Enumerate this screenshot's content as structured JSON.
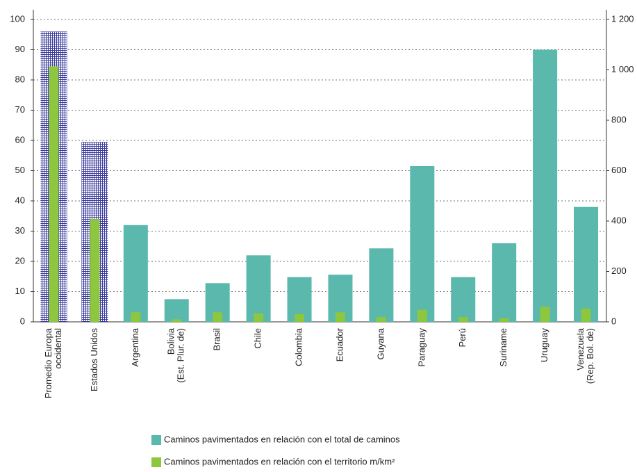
{
  "chart_data": {
    "type": "bar",
    "categories": [
      [
        "Promedio Europa",
        "occidental"
      ],
      [
        "Estados Unidos"
      ],
      [
        "Argentina"
      ],
      [
        "Bolivia",
        "(Est. Plur. de)"
      ],
      [
        "Brasil"
      ],
      [
        "Chile"
      ],
      [
        "Colombia"
      ],
      [
        "Ecuador"
      ],
      [
        "Guyana"
      ],
      [
        "Paraguay"
      ],
      [
        "Perú"
      ],
      [
        "Suriname"
      ],
      [
        "Uruguay"
      ],
      [
        "Venezuela",
        "(Rep. Bol. de)"
      ]
    ],
    "series": [
      {
        "name": "Caminos pavimentados en relación con el total de caminos",
        "color": "#5ab8ac",
        "values": [
          96,
          59.5,
          32,
          7.5,
          12.8,
          22,
          14.8,
          15.6,
          24.3,
          51.5,
          14.8,
          26,
          90,
          38
        ]
      },
      {
        "name": "Caminos pavimentados en relación con el territorio m/km²",
        "color": "#8dc63f",
        "axis": "y2",
        "values": [
          1014,
          408,
          38,
          10,
          38,
          34,
          31,
          38,
          19,
          48,
          19,
          14,
          60,
          53
        ]
      }
    ],
    "hatched_categories": [
      0,
      1
    ],
    "hatch_color": "#3b3b9e",
    "ylim": [
      0,
      100
    ],
    "yticks": [
      0,
      10,
      20,
      30,
      40,
      50,
      60,
      70,
      80,
      90,
      100
    ],
    "y2lim": [
      0,
      1200
    ],
    "y2ticks": [
      0,
      200,
      400,
      600,
      {
        "value": 800,
        "label": "800"
      },
      {
        "value": 1000,
        "label": "1 000"
      },
      {
        "value": 1200,
        "label": "1 200"
      }
    ],
    "grid": true,
    "legend": "bottom"
  }
}
